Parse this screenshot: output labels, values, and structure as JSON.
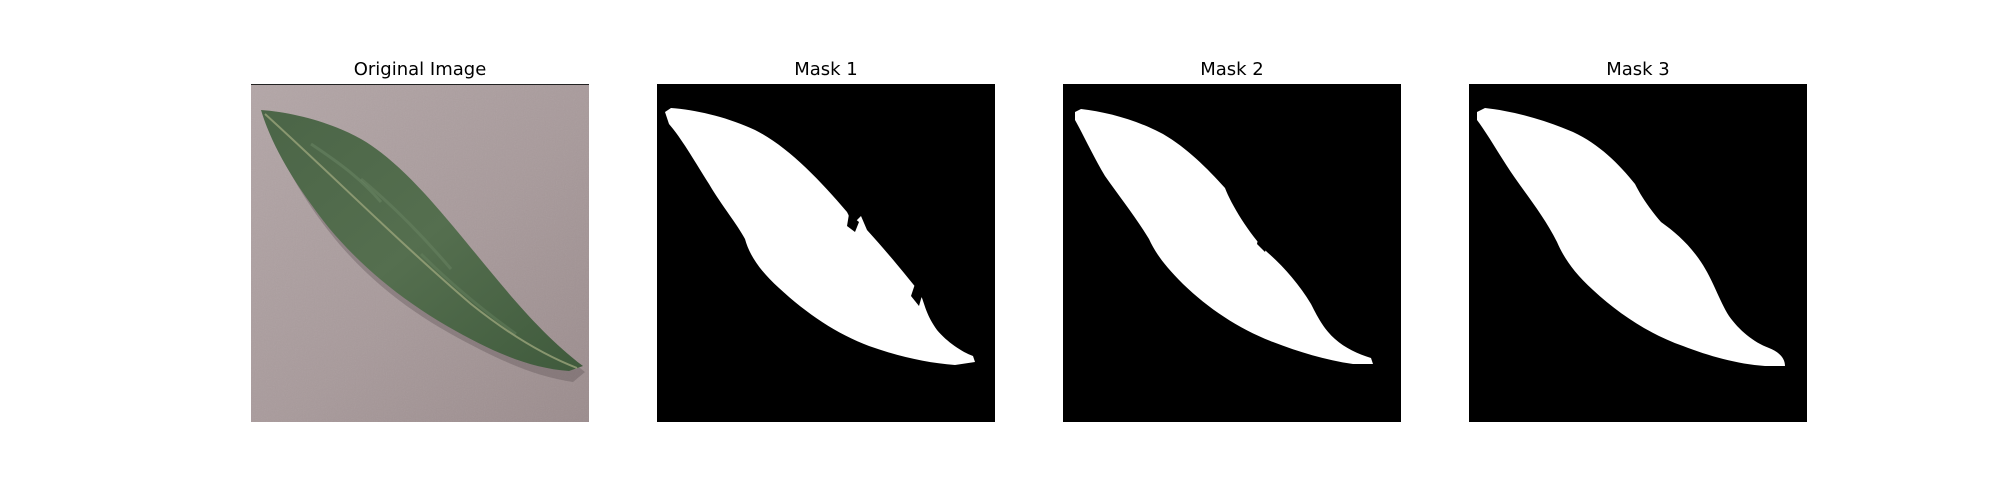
{
  "figure": {
    "panels": [
      {
        "title": "Original Image"
      },
      {
        "title": "Mask 1"
      },
      {
        "title": "Mask 2"
      },
      {
        "title": "Mask 3"
      }
    ]
  },
  "colors": {
    "background_surface": "#a89a9b",
    "leaf_dark": "#3f5a3c",
    "leaf_mid": "#556f4f",
    "mask_background": "#000000",
    "mask_foreground": "#ffffff"
  }
}
